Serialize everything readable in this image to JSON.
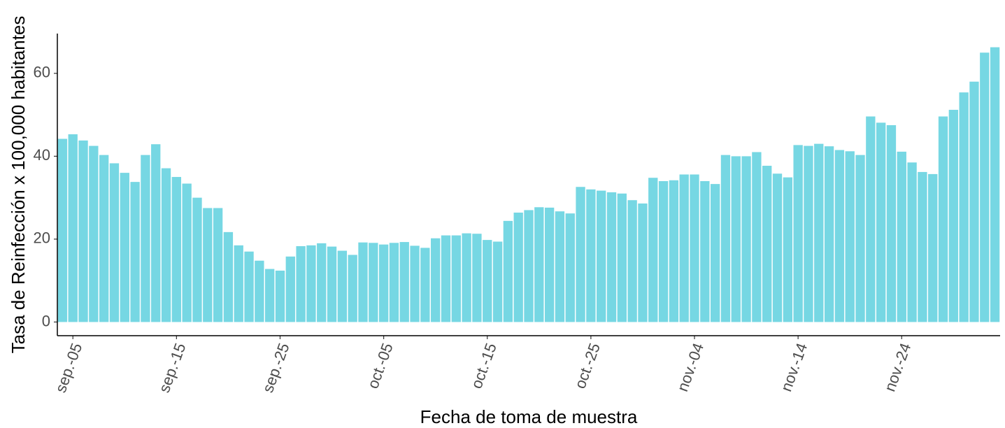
{
  "chart_data": {
    "type": "bar",
    "x_label": "Fecha de toma de muestra",
    "y_label": "Tasa de Reinfección x 100,000 habitantes",
    "categories": [
      null,
      "sep.-05",
      null,
      null,
      null,
      null,
      null,
      null,
      null,
      null,
      null,
      "sep.-15",
      null,
      null,
      null,
      null,
      null,
      null,
      null,
      null,
      null,
      "sep.-25",
      null,
      null,
      null,
      null,
      null,
      null,
      null,
      null,
      null,
      "oct.-05",
      null,
      null,
      null,
      null,
      null,
      null,
      null,
      null,
      null,
      "oct.-15",
      null,
      null,
      null,
      null,
      null,
      null,
      null,
      null,
      null,
      "oct.-25",
      null,
      null,
      null,
      null,
      null,
      null,
      null,
      null,
      null,
      "nov.-04",
      null,
      null,
      null,
      null,
      null,
      null,
      null,
      null,
      null,
      "nov.-14",
      null,
      null,
      null,
      null,
      null,
      null,
      null,
      null,
      null,
      "nov.-24",
      null,
      null,
      null,
      null,
      null,
      null,
      null,
      null,
      null
    ],
    "values": [
      44.2,
      45.3,
      43.8,
      42.5,
      40.3,
      38.3,
      36,
      33.8,
      40.3,
      42.9,
      37.1,
      35,
      33.4,
      30,
      27.5,
      27.5,
      21.7,
      18.5,
      17,
      14.8,
      12.8,
      12.4,
      15.8,
      18.3,
      18.5,
      19,
      18.2,
      17.2,
      16.2,
      19.2,
      19.1,
      18.7,
      19.1,
      19.3,
      18.4,
      17.9,
      20.2,
      20.9,
      20.9,
      21.4,
      21.3,
      19.8,
      19.4,
      24.4,
      26.4,
      27,
      27.7,
      27.6,
      26.7,
      26.2,
      32.6,
      32,
      31.7,
      31.3,
      31,
      29.4,
      28.6,
      34.8,
      34,
      34.2,
      35.6,
      35.6,
      34,
      33.3,
      40.3,
      40,
      40,
      41,
      37.7,
      35.8,
      34.9,
      42.7,
      42.5,
      43,
      42.4,
      41.5,
      41.2,
      40.3,
      49.6,
      48.1,
      47.5,
      41.1,
      38.5,
      36.2,
      35.7,
      49.6,
      51.2,
      55.4,
      58,
      65,
      66.3
    ],
    "color": "#76d7e3",
    "ylim": [
      -3.3,
      69.6
    ],
    "yticks": [
      0,
      20,
      40,
      60
    ],
    "grid": false
  }
}
